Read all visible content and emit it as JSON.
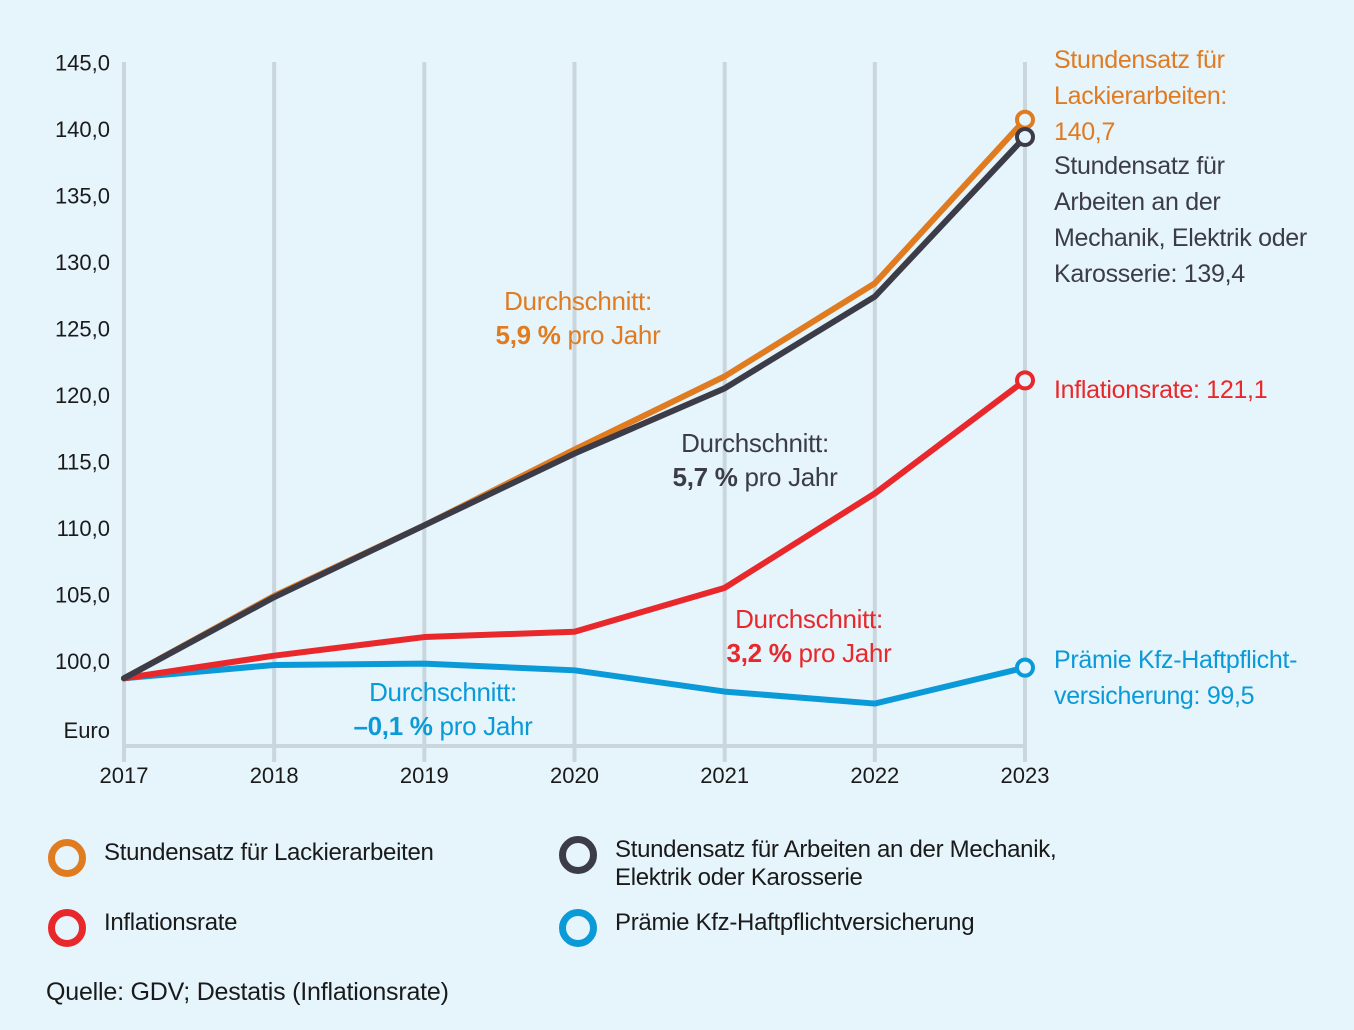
{
  "chart_data": {
    "type": "line",
    "title": "",
    "xlabel": "",
    "ylabel": "Euro",
    "x": [
      "2017",
      "2018",
      "2019",
      "2020",
      "2021",
      "2022",
      "2023"
    ],
    "y_ticks": [
      "145,0",
      "140,0",
      "135,0",
      "130,0",
      "125,0",
      "120,0",
      "115,0",
      "110,0",
      "105,0",
      "100,0"
    ],
    "y_tick_values": [
      145,
      140,
      135,
      130,
      125,
      120,
      115,
      110,
      105,
      100
    ],
    "y_unit_label": "Euro",
    "ylim": [
      96.5,
      145
    ],
    "grid": "vertical",
    "series": [
      {
        "key": "lack",
        "name": "Stundensatz für Lackierarbeiten",
        "color": "#e07b20",
        "values": [
          98.7,
          104.9,
          110.2,
          115.9,
          121.4,
          128.4,
          140.7
        ],
        "end_label": [
          "Stundensatz für",
          "Lackierarbeiten:",
          "140,7"
        ],
        "avg_label": {
          "line1": "Durchschnitt:",
          "bold": "5,9 %",
          "rest": " pro Jahr"
        }
      },
      {
        "key": "mech",
        "name": "Stundensatz für Arbeiten an der Mechanik, Elektrik oder Karosserie",
        "color": "#3c3c48",
        "values": [
          98.7,
          104.8,
          110.2,
          115.6,
          120.5,
          127.4,
          139.4
        ],
        "end_label": [
          "Stundensatz für",
          "Arbeiten an der",
          "Mechanik, Elektrik oder",
          "Karosserie: 139,4"
        ],
        "avg_label": {
          "line1": "Durchschnitt:",
          "bold": "5,7 %",
          "rest": " pro Jahr"
        }
      },
      {
        "key": "infl",
        "name": "Inflationsrate",
        "color": "#e8282b",
        "values": [
          98.7,
          100.4,
          101.8,
          102.2,
          105.5,
          112.6,
          121.1
        ],
        "end_label": [
          "Inflationsrate: 121,1"
        ],
        "avg_label": {
          "line1": "Durchschnitt:",
          "bold": "3,2 %",
          "rest": " pro Jahr"
        }
      },
      {
        "key": "kfz",
        "name": "Prämie Kfz-Haftpflichtversicherung",
        "color": "#0a9ad8",
        "values": [
          98.7,
          99.7,
          99.8,
          99.3,
          97.7,
          96.8,
          99.5
        ],
        "end_label": [
          "Prämie Kfz-Haftpflicht-",
          "versicherung: 99,5"
        ],
        "avg_label": {
          "line1": "Durchschnitt:",
          "bold": "–0,1 %",
          "rest": " pro Jahr"
        }
      }
    ],
    "legend": [
      {
        "label": "Stundensatz für Lackierarbeiten",
        "color": "#e07b20"
      },
      {
        "label": "Stundensatz für Arbeiten an der Mechanik, Elektrik oder Karosserie",
        "color": "#3c3c48"
      },
      {
        "label": "Inflationsrate",
        "color": "#e8282b"
      },
      {
        "label": "Prämie Kfz-Haftpflichtversicherung",
        "color": "#0a9ad8"
      }
    ],
    "legend_position": "bottom",
    "source": "Quelle: GDV; Destatis (Inflationsrate)"
  },
  "colors": {
    "background": "#e6f4fc",
    "grid": "#c9d6de",
    "text": "#1a1a1a"
  }
}
